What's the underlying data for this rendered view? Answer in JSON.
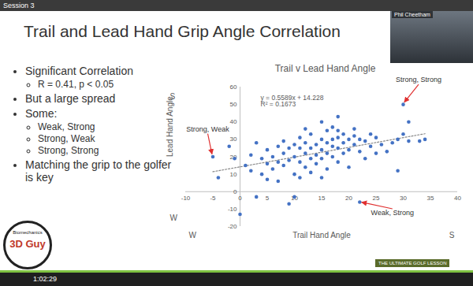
{
  "header": {
    "session": "Session 3",
    "presenter": "Phil Cheetham"
  },
  "slide": {
    "title": "Trail and Lead Hand Grip Angle Correlation",
    "bullets": [
      {
        "text": "Significant Correlation",
        "sub": [
          "R = 0.41,  p < 0.05"
        ]
      },
      {
        "text": "But a large spread"
      },
      {
        "text": "Some:",
        "sub": [
          "Weak, Strong",
          "Strong, Weak",
          "Strong, Strong"
        ]
      },
      {
        "text": "Matching the grip to the golfer is key"
      }
    ]
  },
  "chart_data": {
    "type": "scatter",
    "title": "Trail v Lead Hand Angle",
    "xlabel": "Trail Hand Angle",
    "ylabel": "Lead Hand Angle",
    "x_ends": [
      "W",
      "S"
    ],
    "y_ends": [
      "W",
      "S"
    ],
    "x": [
      -5,
      -4,
      -2,
      -1,
      0,
      1,
      2,
      2,
      3,
      3,
      4,
      4,
      5,
      5,
      5,
      6,
      6,
      7,
      7,
      7,
      8,
      8,
      8,
      9,
      9,
      9,
      10,
      10,
      10,
      10,
      11,
      11,
      11,
      11,
      12,
      12,
      12,
      12,
      13,
      13,
      13,
      13,
      14,
      14,
      14,
      15,
      15,
      15,
      15,
      15,
      16,
      16,
      16,
      16,
      17,
      17,
      17,
      17,
      18,
      18,
      18,
      18,
      18,
      19,
      19,
      19,
      20,
      20,
      20,
      21,
      21,
      21,
      22,
      22,
      22,
      23,
      23,
      24,
      24,
      25,
      25,
      26,
      27,
      28,
      29,
      29,
      30,
      30,
      31,
      31,
      33,
      34
    ],
    "values": [
      20,
      8,
      26,
      19,
      -13,
      15,
      21,
      12,
      -3,
      28,
      19,
      10,
      24,
      16,
      7,
      20,
      13,
      26,
      6,
      17,
      22,
      15,
      29,
      18,
      -7,
      25,
      -3,
      20,
      10,
      27,
      25,
      17,
      31,
      8,
      22,
      14,
      28,
      36,
      19,
      25,
      33,
      11,
      27,
      21,
      16,
      40,
      30,
      24,
      19,
      8,
      28,
      22,
      35,
      13,
      37,
      26,
      30,
      20,
      43,
      31,
      25,
      35,
      17,
      28,
      33,
      22,
      30,
      24,
      14,
      32,
      27,
      36,
      -6,
      23,
      30,
      29,
      19,
      26,
      33,
      31,
      22,
      27,
      23,
      28,
      12,
      30,
      50,
      33,
      40,
      29,
      29,
      30
    ],
    "color": "#4472c4",
    "marker": "circle",
    "xlim": [
      -10,
      40
    ],
    "xticks": [
      -10,
      -5,
      0,
      5,
      10,
      15,
      20,
      25,
      30,
      35,
      40
    ],
    "ylim": [
      -20,
      60
    ],
    "yticks": [
      -20,
      -10,
      0,
      10,
      20,
      30,
      40,
      50,
      60
    ],
    "grid": false,
    "trendline": {
      "slope": 0.5589,
      "intercept": 14.228,
      "x": [
        -5,
        34
      ],
      "line_style": "dotted",
      "equation": "y = 0.5589x + 14.228",
      "r_squared_label": "R² = 0.1673"
    },
    "annotations": [
      {
        "text": "Strong, Strong",
        "x": 30,
        "y": 50
      },
      {
        "text": "Strong, Weak",
        "x": -5,
        "y": 20
      },
      {
        "text": "Weak, Strong",
        "x": 22,
        "y": -6
      }
    ]
  },
  "logo": {
    "top": "Biomechanics",
    "main": "3D Guy"
  },
  "player": {
    "time": "1:02:29",
    "banner": "THE ULTIMATE GOLF LESSON"
  }
}
